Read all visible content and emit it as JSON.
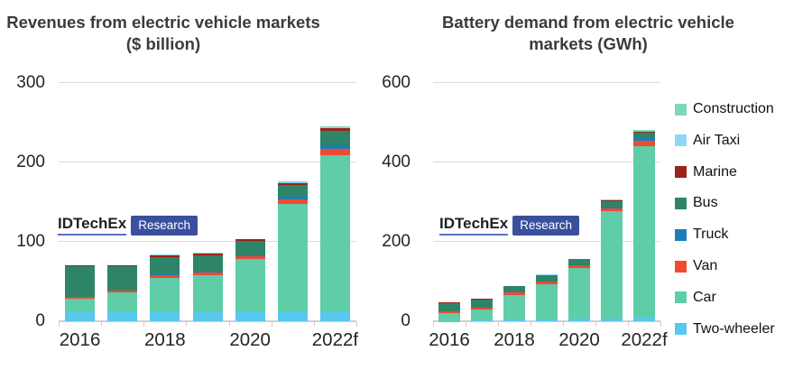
{
  "page": {
    "background": "#ffffff"
  },
  "watermark": {
    "brand": "IDTechEx",
    "sub": "Research",
    "brand_color": "#20202c",
    "underline_color": "#5a6fc4",
    "box_color": "#3a4f9e",
    "sub_text_color": "#ffffff"
  },
  "legend": {
    "position": "right",
    "items": [
      {
        "label": "Construction",
        "color": "#7FD8B5"
      },
      {
        "label": "Air Taxi",
        "color": "#8BD9F4"
      },
      {
        "label": "Marine",
        "color": "#9B2418"
      },
      {
        "label": "Bus",
        "color": "#2E8468"
      },
      {
        "label": "Truck",
        "color": "#1E7DB5"
      },
      {
        "label": "Van",
        "color": "#F04A2F"
      },
      {
        "label": "Car",
        "color": "#5ECDA8"
      },
      {
        "label": "Two-wheeler",
        "color": "#57C8F0"
      }
    ]
  },
  "chart_data": [
    {
      "type": "bar",
      "stacked": true,
      "title": "Revenues from electric vehicle markets ($ billion)",
      "categories": [
        "2016",
        "2017",
        "2018",
        "2019",
        "2020",
        "2021",
        "2022f"
      ],
      "x_axis_labels": [
        "2016",
        "2018",
        "2020",
        "2022f"
      ],
      "y_ticks": [
        0,
        100,
        200,
        300
      ],
      "ylim": [
        0,
        300
      ],
      "grid": "horizontal",
      "series": [
        {
          "name": "Two-wheeler",
          "color": "#57C8F0",
          "values": [
            11,
            11,
            11,
            11,
            12,
            12,
            12
          ]
        },
        {
          "name": "Car",
          "color": "#5ECDA8",
          "values": [
            17,
            25,
            44,
            47,
            66,
            136,
            197
          ]
        },
        {
          "name": "Van",
          "color": "#F04A2F",
          "values": [
            3,
            3,
            3,
            3,
            4,
            5,
            8
          ]
        },
        {
          "name": "Truck",
          "color": "#1E7DB5",
          "values": [
            0,
            0,
            1,
            1,
            1,
            4,
            5
          ]
        },
        {
          "name": "Bus",
          "color": "#2E8468",
          "values": [
            38,
            30,
            22,
            21,
            18,
            15,
            18
          ]
        },
        {
          "name": "Marine",
          "color": "#9B2418",
          "values": [
            2,
            2,
            2,
            2,
            2,
            2,
            3
          ]
        },
        {
          "name": "Air Taxi",
          "color": "#8BD9F4",
          "values": [
            0,
            0,
            1,
            1,
            1,
            1,
            1
          ]
        },
        {
          "name": "Construction",
          "color": "#7FD8B5",
          "values": [
            0,
            0,
            0,
            0,
            0,
            1,
            1
          ]
        }
      ],
      "totals": [
        71,
        71,
        84,
        86,
        104,
        176,
        245
      ]
    },
    {
      "type": "bar",
      "stacked": true,
      "title": "Battery demand from electric vehicle markets (GWh)",
      "categories": [
        "2016",
        "2017",
        "2018",
        "2019",
        "2020",
        "2021",
        "2022f"
      ],
      "x_axis_labels": [
        "2016",
        "2018",
        "2020",
        "2022f"
      ],
      "y_ticks": [
        0,
        200,
        400,
        600
      ],
      "ylim": [
        0,
        600
      ],
      "grid": "horizontal",
      "series": [
        {
          "name": "Two-wheeler",
          "color": "#57C8F0",
          "values": [
            1,
            2,
            4,
            5,
            6,
            7,
            8
          ]
        },
        {
          "name": "Car",
          "color": "#5ECDA8",
          "values": [
            19,
            28,
            63,
            89,
            129,
            271,
            434
          ]
        },
        {
          "name": "Van",
          "color": "#F04A2F",
          "values": [
            4,
            5,
            6,
            6,
            6,
            6,
            12
          ]
        },
        {
          "name": "Truck",
          "color": "#1E7DB5",
          "values": [
            0,
            0,
            1,
            1,
            1,
            2,
            9
          ]
        },
        {
          "name": "Bus",
          "color": "#2E8468",
          "values": [
            22,
            20,
            14,
            15,
            14,
            17,
            12
          ]
        },
        {
          "name": "Marine",
          "color": "#9B2418",
          "values": [
            2,
            2,
            1,
            1,
            1,
            1,
            2
          ]
        },
        {
          "name": "Air Taxi",
          "color": "#8BD9F4",
          "values": [
            0,
            0,
            0,
            1,
            1,
            1,
            1
          ]
        },
        {
          "name": "Construction",
          "color": "#7FD8B5",
          "values": [
            0,
            0,
            0,
            0,
            0,
            1,
            4
          ]
        }
      ],
      "totals": [
        48,
        57,
        89,
        118,
        158,
        306,
        482
      ]
    }
  ]
}
